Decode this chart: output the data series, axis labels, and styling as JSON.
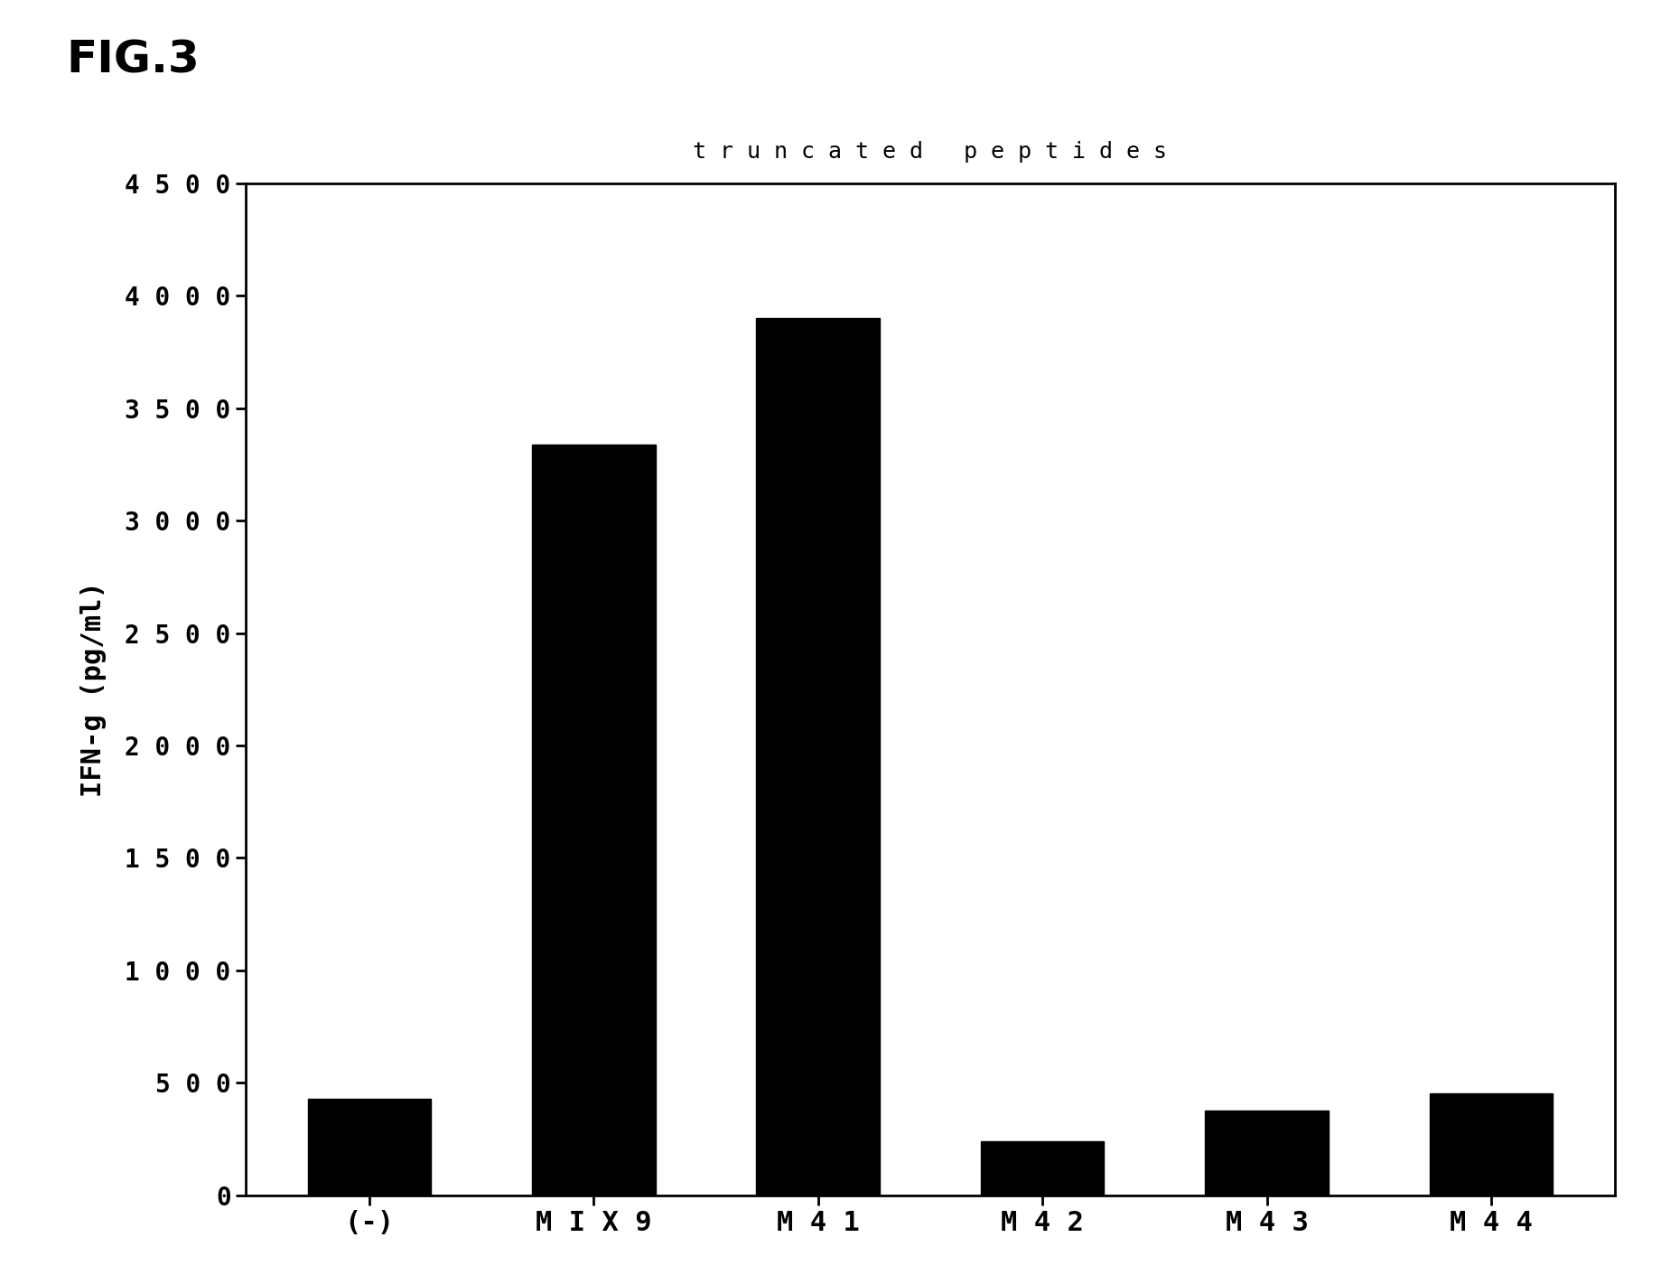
{
  "categories": [
    "(-)",
    "MIX9",
    "M41",
    "M42",
    "M43",
    "M44"
  ],
  "values": [
    430,
    3340,
    3900,
    240,
    375,
    455
  ],
  "bar_color": "#000000",
  "title": "t r u n c a t e d   p e p t i d e s",
  "ylabel": "IFN-g (pg/ml)",
  "ylim": [
    0,
    4500
  ],
  "yticks": [
    0,
    500,
    1000,
    1500,
    2000,
    2500,
    3000,
    3500,
    4000,
    4500
  ],
  "ytick_labels": [
    "0",
    "5 0 0",
    "1 0 0 0",
    "1 5 0 0",
    "2 0 0 0",
    "2 5 0 0",
    "3 0 0 0",
    "3 5 0 0",
    "4 0 0 0",
    "4 5 0 0"
  ],
  "xtick_labels": [
    "(-)",
    "M I X 9",
    "M 4 1",
    "M 4 2",
    "M 4 3",
    "M 4 4"
  ],
  "fig_title": "FIG.3",
  "background_color": "#ffffff",
  "title_fontsize": 18,
  "ylabel_fontsize": 22,
  "tick_fontsize": 20,
  "xtick_fontsize": 22,
  "fig_title_fontsize": 36
}
